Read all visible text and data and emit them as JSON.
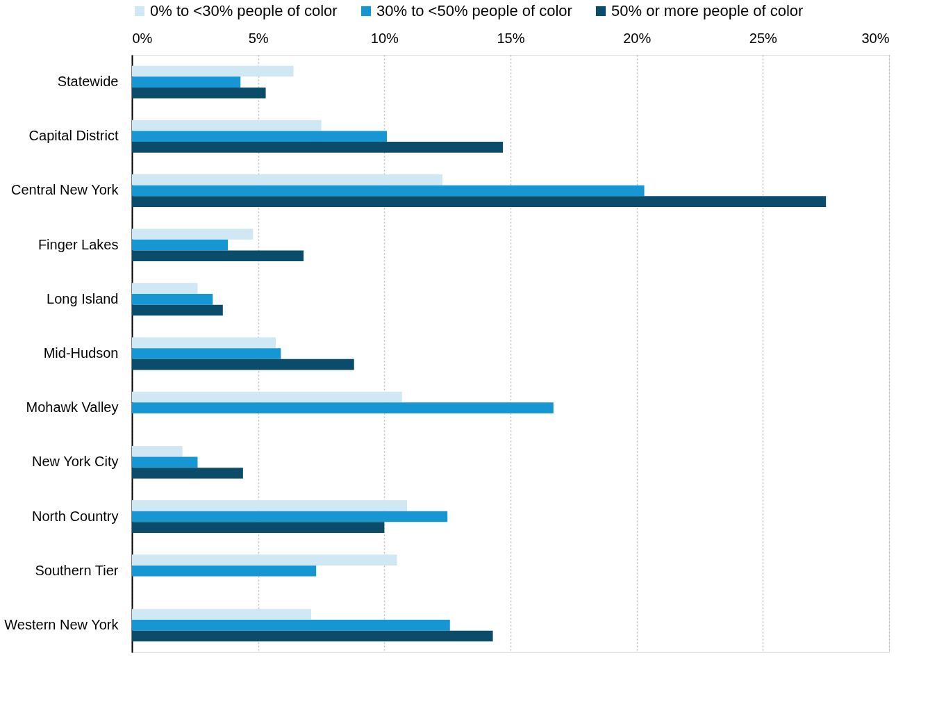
{
  "chart_data": {
    "type": "bar",
    "orientation": "horizontal",
    "categories": [
      "Statewide",
      "Capital District",
      "Central New York",
      "Finger Lakes",
      "Long Island",
      "Mid-Hudson",
      "Mohawk Valley",
      "New York City",
      "North Country",
      "Southern Tier",
      "Western New York"
    ],
    "series": [
      {
        "name": "0% to <30% people of color",
        "color": "#cfe8f3",
        "values": [
          6.4,
          7.5,
          12.3,
          4.8,
          2.6,
          5.7,
          10.7,
          2.0,
          10.9,
          10.5,
          7.1
        ]
      },
      {
        "name": "30% to <50% people of color",
        "color": "#1696d2",
        "values": [
          4.3,
          10.1,
          20.3,
          3.8,
          3.2,
          5.9,
          16.7,
          2.6,
          12.5,
          7.3,
          12.6
        ]
      },
      {
        "name": "50% or more people of color",
        "color": "#0a4c6a",
        "values": [
          5.3,
          14.7,
          27.5,
          6.8,
          3.6,
          8.8,
          null,
          4.4,
          10.0,
          null,
          14.3
        ]
      }
    ],
    "xlim": [
      0,
      30
    ],
    "xticks": [
      {
        "value": 0,
        "label": "0%"
      },
      {
        "value": 5,
        "label": "5%"
      },
      {
        "value": 10,
        "label": "10%"
      },
      {
        "value": 15,
        "label": "15%"
      },
      {
        "value": 20,
        "label": "20%"
      },
      {
        "value": 25,
        "label": "25%"
      },
      {
        "value": 30,
        "label": "30%"
      }
    ],
    "grid": "x",
    "legend": "top"
  }
}
